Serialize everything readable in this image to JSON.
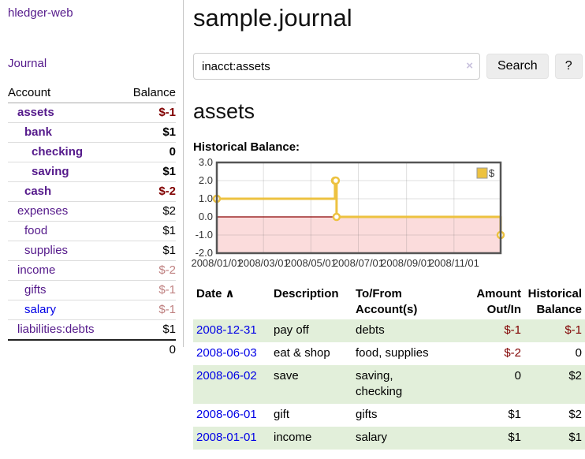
{
  "app": {
    "brand": "hledger-web"
  },
  "nav": {
    "journal": "Journal"
  },
  "sidebar": {
    "header": {
      "account": "Account",
      "balance": "Balance"
    },
    "accounts": [
      {
        "name": "assets",
        "balance": "$-1"
      },
      {
        "name": "bank",
        "balance": "$1"
      },
      {
        "name": "checking",
        "balance": "0"
      },
      {
        "name": "saving",
        "balance": "$1"
      },
      {
        "name": "cash",
        "balance": "$-2"
      },
      {
        "name": "expenses",
        "balance": "$2"
      },
      {
        "name": "food",
        "balance": "$1"
      },
      {
        "name": "supplies",
        "balance": "$1"
      },
      {
        "name": "income",
        "balance": "$-2"
      },
      {
        "name": "gifts",
        "balance": "$-1"
      },
      {
        "name": "salary",
        "balance": "$-1"
      },
      {
        "name": "liabilities:debts",
        "balance": "$1"
      }
    ],
    "total": "0"
  },
  "header": {
    "title": "sample.journal"
  },
  "search": {
    "value": "inacct:assets",
    "clear_icon": "×",
    "button_label": "Search",
    "help_label": "?"
  },
  "account_page": {
    "title": "assets",
    "chart_label": "Historical Balance:"
  },
  "chart_data": {
    "type": "line",
    "step": true,
    "title": "Historical Balance:",
    "series": [
      {
        "name": "$",
        "points": [
          [
            "2008-01-01",
            1
          ],
          [
            "2008-06-01",
            2
          ],
          [
            "2008-06-02",
            2
          ],
          [
            "2008-06-03",
            0
          ],
          [
            "2008-12-31",
            -1
          ]
        ]
      }
    ],
    "xlim": [
      "2008-01-01",
      "2008-12-31"
    ],
    "ylim": [
      -2,
      3
    ],
    "yticks": [
      3.0,
      2.0,
      1.0,
      0.0,
      -1.0,
      -2.0
    ],
    "xticks": [
      "2008/01/01",
      "2008/03/01",
      "2008/05/01",
      "2008/07/01",
      "2008/09/01",
      "2008/11/01"
    ],
    "grid": true,
    "legend_position": "top-right"
  },
  "register": {
    "columns": {
      "date": "Date",
      "sort_asc_icon": "∧",
      "description": "Description",
      "account": "To/From Account(s)",
      "amount": "Amount Out/In",
      "balance": "Historical Balance"
    },
    "rows": [
      {
        "date": "2008-12-31",
        "description": "pay off",
        "account": "debts",
        "amount": "$-1",
        "balance": "$-1"
      },
      {
        "date": "2008-06-03",
        "description": "eat & shop",
        "account": "food, supplies",
        "amount": "$-2",
        "balance": "0"
      },
      {
        "date": "2008-06-02",
        "description": "save",
        "account": "saving, checking",
        "amount": "0",
        "balance": "$2"
      },
      {
        "date": "2008-06-01",
        "description": "gift",
        "account": "gifts",
        "amount": "$1",
        "balance": "$2"
      },
      {
        "date": "2008-01-01",
        "description": "income",
        "account": "salary",
        "amount": "$1",
        "balance": "$1"
      }
    ]
  },
  "colors": {
    "link_purple": "#551a8b",
    "link_blue": "#0000e6",
    "negative": "#800000",
    "negative_dim": "#bf8080",
    "row_stripe_green": "#e2efda",
    "chart_series": "#edc240",
    "chart_negative_region": "#fbdcdc",
    "chart_zero_line": "#8b0000",
    "chart_border": "#555555",
    "chart_grid": "#d8d8d8"
  }
}
